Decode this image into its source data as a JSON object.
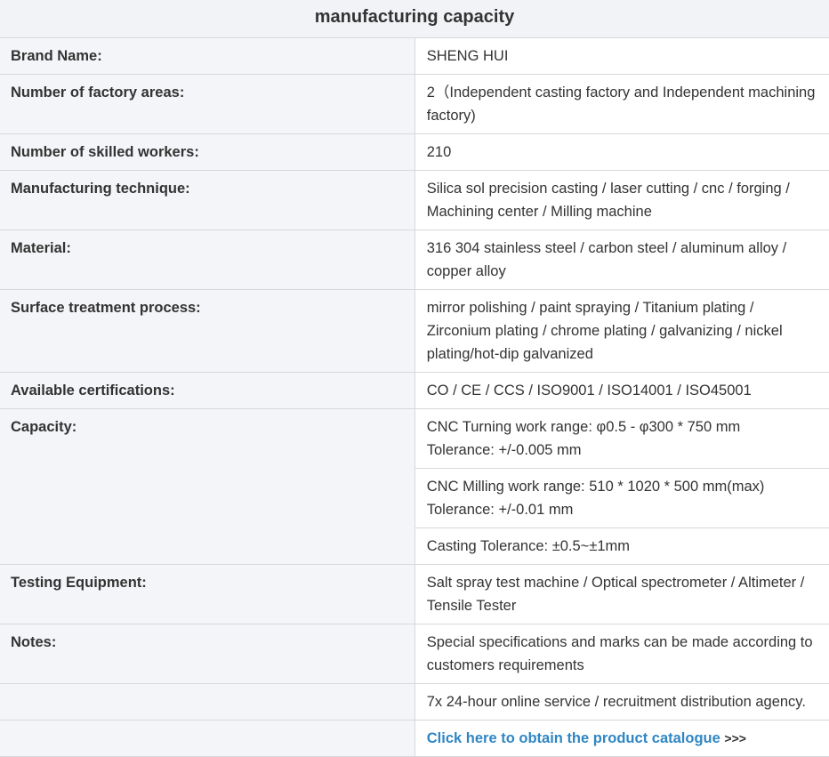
{
  "title": "manufacturing capacity",
  "rows": [
    {
      "label": "Brand Name:",
      "value": "SHENG HUI"
    },
    {
      "label": "Number of factory areas:",
      "value": "2（Independent casting factory and Independent machining factory)"
    },
    {
      "label": "Number of skilled workers:",
      "value": "210"
    },
    {
      "label": "Manufacturing technique:",
      "value": "Silica sol precision casting / laser cutting / cnc / forging / Machining center / Milling machine"
    },
    {
      "label": "Material:",
      "value": "316 304 stainless steel / carbon steel / aluminum alloy / copper alloy"
    },
    {
      "label": "Surface treatment process:",
      "value": "mirror polishing / paint spraying / Titanium plating / Zirconium plating / chrome plating / galvanizing / nickel plating/hot-dip galvanized"
    },
    {
      "label": "Available certifications:",
      "value": "CO / CE / CCS / ISO9001 / ISO14001 / ISO45001"
    }
  ],
  "capacity": {
    "label": "Capacity:",
    "items": [
      {
        "line1": "CNC Turning work range: φ0.5 - φ300 * 750 mm",
        "line2": "Tolerance: +/-0.005 mm"
      },
      {
        "line1": "CNC Milling work range: 510 * 1020 * 500 mm(max)",
        "line2": "Tolerance: +/-0.01 mm"
      },
      {
        "line1": "Casting Tolerance: ±0.5~±1mm"
      }
    ]
  },
  "testing": {
    "label": "Testing Equipment:",
    "value": "Salt spray test machine / Optical spectrometer / Altimeter / Tensile Tester"
  },
  "notes": {
    "label": "Notes:",
    "value": "Special specifications and marks can be made according to customers requirements"
  },
  "service": "7x 24-hour online service / recruitment distribution agency.",
  "catalogue": {
    "link_text": "Click here to obtain the product catalogue",
    "arrows": ">>>"
  },
  "colors": {
    "link": "#2f86c4",
    "label_bg": "#f4f5f8",
    "header_bg": "#f1f3f6"
  }
}
